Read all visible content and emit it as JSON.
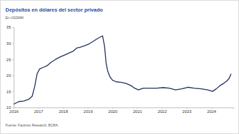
{
  "chart_data": {
    "type": "line",
    "title": "Depósitos en dólares del sector privado",
    "subtitle": "En USDMM",
    "source": "Fuente: Facimex Research, BCRA.",
    "x": [
      2016.0,
      2016.2,
      2016.4,
      2016.6,
      2016.75,
      2016.85,
      2016.95,
      2017.05,
      2017.2,
      2017.35,
      2017.5,
      2017.7,
      2017.9,
      2018.05,
      2018.2,
      2018.4,
      2018.55,
      2018.7,
      2018.9,
      2019.05,
      2019.2,
      2019.4,
      2019.6,
      2019.68,
      2019.74,
      2019.8,
      2019.9,
      2020.0,
      2020.15,
      2020.35,
      2020.55,
      2020.75,
      2020.9,
      2021.05,
      2021.25,
      2021.5,
      2021.8,
      2022.05,
      2022.3,
      2022.55,
      2022.8,
      2023.05,
      2023.3,
      2023.6,
      2023.85,
      2024.05,
      2024.2,
      2024.35,
      2024.5,
      2024.62,
      2024.72,
      2024.8
    ],
    "values": [
      11.0,
      11.8,
      12.0,
      12.5,
      13.5,
      16.5,
      20.5,
      22.0,
      22.5,
      23.0,
      24.0,
      25.0,
      25.8,
      26.3,
      26.8,
      27.5,
      28.5,
      28.8,
      29.3,
      29.8,
      30.5,
      31.5,
      32.3,
      29.0,
      24.0,
      21.5,
      19.5,
      18.5,
      18.0,
      17.8,
      17.5,
      16.8,
      16.0,
      15.5,
      16.0,
      16.0,
      16.0,
      16.2,
      16.0,
      15.5,
      15.8,
      16.3,
      16.0,
      15.8,
      15.5,
      15.0,
      15.8,
      16.8,
      17.5,
      18.2,
      19.0,
      20.5
    ],
    "color": "#1b2a5a",
    "xlim": [
      2016,
      2024.9
    ],
    "xticks": [
      2016,
      2017,
      2018,
      2019,
      2020,
      2021,
      2022,
      2023,
      2024
    ],
    "ylim": [
      10,
      35
    ],
    "yticks": [
      10,
      15,
      20,
      25,
      30,
      35
    ],
    "grid": false
  }
}
